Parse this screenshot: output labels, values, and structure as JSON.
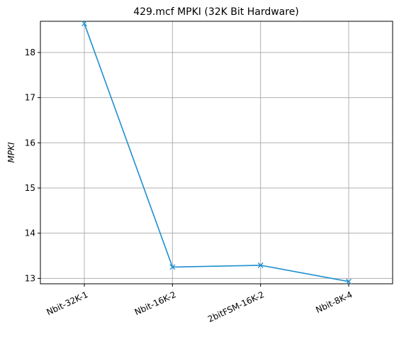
{
  "chart_data": {
    "type": "line",
    "title": "429.mcf MPKI (32K Bit Hardware)",
    "xlabel": "",
    "ylabel": "MPKI",
    "categories": [
      "Nbit-32K-1",
      "Nbit-16K-2",
      "2bitFSM-16K-2",
      "Nbit-8K-4"
    ],
    "series": [
      {
        "values": [
          18.64,
          13.25,
          13.29,
          12.93
        ],
        "color": "#1f8fcf",
        "marker": "x"
      }
    ],
    "ylim": [
      12.88,
      18.69
    ],
    "yticks": [
      13,
      14,
      15,
      16,
      17,
      18
    ],
    "grid": true,
    "x_tick_rotation": -25
  }
}
